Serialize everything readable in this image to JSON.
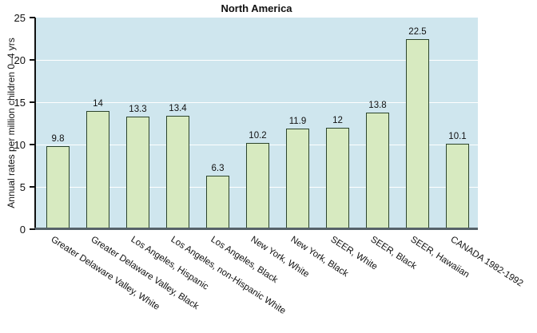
{
  "chart_data": {
    "type": "bar",
    "title": "North America",
    "ylabel": "Annual rates per million children 0–4 yrs",
    "xlabel": "",
    "categories": [
      "Greater Delaware Valley, White",
      "Greater Delaware Valley, Black",
      "Los Angeles, Hispanic",
      "Los Angeles, non-Hispanic White",
      "Los Angeles, Black",
      "New York, White",
      "New York, Black",
      "SEER, White",
      "SEER, Black",
      "SEER, Hawaiian",
      "CANADA 1982-1992"
    ],
    "values": [
      9.8,
      14,
      13.3,
      13.4,
      6.3,
      10.2,
      11.9,
      12,
      13.8,
      22.5,
      10.1
    ],
    "value_labels": [
      "9.8",
      "14",
      "13.3",
      "13.4",
      "6.3",
      "10.2",
      "11.9",
      "12",
      "13.8",
      "22.5",
      "10.1"
    ],
    "ylim": [
      0,
      25
    ],
    "yticks": [
      0,
      5,
      10,
      15,
      20,
      25
    ],
    "ytick_labels": [
      "0",
      "5",
      "10",
      "15",
      "20",
      "25"
    ],
    "grid": "horizontal",
    "legend": "none",
    "colors": {
      "plot_background": "#cfe6ee",
      "bar_fill": "#d7eac0",
      "bar_border": "#2b442b",
      "gridline": "#ffffff",
      "y_axis": "#111111",
      "x_axis_baseline": "#566269",
      "text": "#111111",
      "page_background": "#ffffff"
    }
  }
}
